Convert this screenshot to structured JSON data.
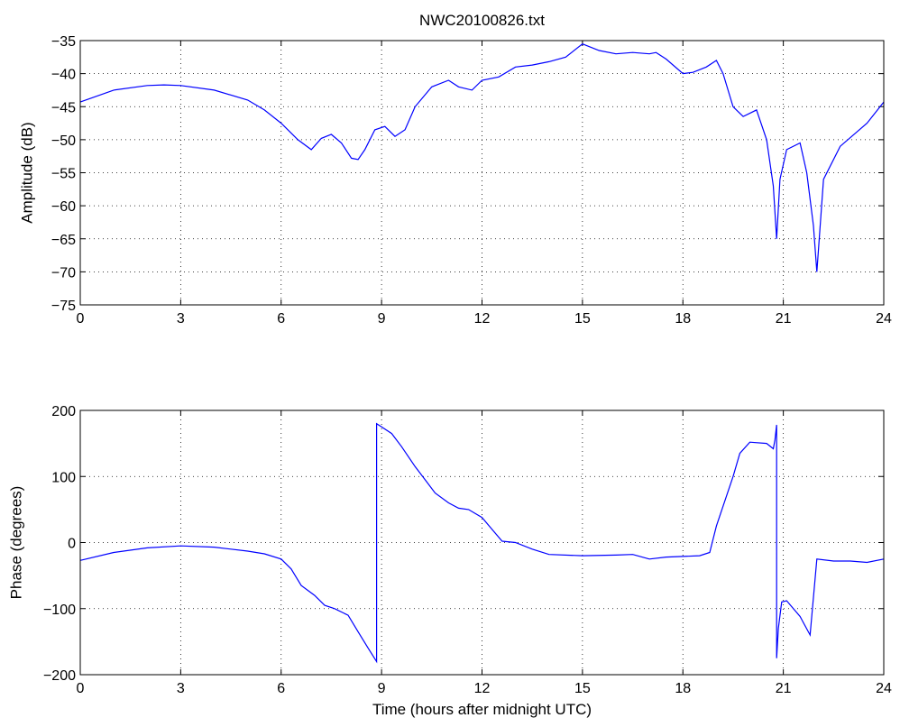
{
  "chart_data": [
    {
      "type": "line",
      "title": "NWC20100826.txt",
      "xlabel": "",
      "ylabel": "Amplitude (dB)",
      "xlim": [
        0,
        24
      ],
      "ylim": [
        -75,
        -35
      ],
      "xticks": [
        0,
        3,
        6,
        9,
        12,
        15,
        18,
        21,
        24
      ],
      "yticks": [
        -75,
        -70,
        -65,
        -60,
        -55,
        -50,
        -45,
        -40,
        -35
      ],
      "xtick_labels": [
        "0",
        "3",
        "6",
        "9",
        "12",
        "15",
        "18",
        "21",
        "24"
      ],
      "ytick_labels": [
        "−75",
        "−70",
        "−65",
        "−60",
        "−55",
        "−50",
        "−45",
        "−40",
        "−35"
      ],
      "grid": true,
      "line_color": "#0000ff",
      "series": [
        {
          "x": [
            0,
            1,
            2,
            2.5,
            3,
            4,
            5,
            5.5,
            6,
            6.5,
            6.9,
            7.2,
            7.5,
            7.8,
            8.1,
            8.3,
            8.5,
            8.8,
            9.1,
            9.4,
            9.7,
            10,
            10.5,
            11,
            11.3,
            11.7,
            12,
            12.5,
            13,
            13.5,
            14,
            14.5,
            15,
            15.5,
            16,
            16.5,
            17,
            17.2,
            17.5,
            18,
            18.3,
            18.7,
            19,
            19.2,
            19.5,
            19.8,
            20.2,
            20.5,
            20.7,
            20.8,
            20.9,
            21.1,
            21.5,
            21.7,
            21.9,
            22,
            22.2,
            22.7,
            23.5,
            24
          ],
          "y": [
            -44.3,
            -42.5,
            -41.8,
            -41.7,
            -41.8,
            -42.5,
            -44,
            -45.5,
            -47.5,
            -50,
            -51.5,
            -49.8,
            -49.2,
            -50.5,
            -52.8,
            -53,
            -51.5,
            -48.5,
            -48,
            -49.5,
            -48.5,
            -45,
            -42,
            -41,
            -42,
            -42.5,
            -41,
            -40.5,
            -39,
            -38.7,
            -38.2,
            -37.5,
            -35.5,
            -36.5,
            -37,
            -36.8,
            -37,
            -36.8,
            -37.8,
            -40,
            -39.8,
            -39,
            -38,
            -40,
            -45,
            -46.5,
            -45.5,
            -50,
            -57,
            -65,
            -56,
            -51.5,
            -50.5,
            -55,
            -63,
            -70,
            -56,
            -51,
            -47.5,
            -44.3
          ]
        }
      ]
    },
    {
      "type": "line",
      "title": "",
      "xlabel": "Time (hours after midnight UTC)",
      "ylabel": "Phase (degrees)",
      "xlim": [
        0,
        24
      ],
      "ylim": [
        -200,
        200
      ],
      "xticks": [
        0,
        3,
        6,
        9,
        12,
        15,
        18,
        21,
        24
      ],
      "yticks": [
        -200,
        -100,
        0,
        100,
        200
      ],
      "xtick_labels": [
        "0",
        "3",
        "6",
        "9",
        "12",
        "15",
        "18",
        "21",
        "24"
      ],
      "ytick_labels": [
        "−200",
        "−100",
        "0",
        "100",
        "200"
      ],
      "grid": true,
      "line_color": "#0000ff",
      "series": [
        {
          "x": [
            0,
            1,
            2,
            3,
            4,
            5,
            5.5,
            6,
            6.3,
            6.6,
            7,
            7.3,
            7.6,
            8,
            8.3,
            8.6,
            8.85,
            8.85,
            9,
            9.3,
            9.6,
            10,
            10.3,
            10.6,
            11,
            11.3,
            11.6,
            12,
            12.3,
            12.6,
            13,
            13.5,
            14,
            15,
            16,
            16.5,
            17,
            17.5,
            18,
            18.5,
            18.8,
            19,
            19.2,
            19.5,
            19.7,
            20,
            20.5,
            20.7,
            20.75,
            20.8,
            20.8,
            20.85,
            20.95,
            21.1,
            21.5,
            21.8,
            22,
            22.5,
            23,
            23.5,
            24
          ],
          "y": [
            -27,
            -15,
            -8,
            -5,
            -7,
            -13,
            -17,
            -25,
            -40,
            -65,
            -80,
            -95,
            -100,
            -110,
            -135,
            -160,
            -180,
            180,
            175,
            165,
            145,
            115,
            95,
            75,
            60,
            52,
            50,
            38,
            20,
            2,
            0,
            -10,
            -18,
            -20,
            -19,
            -18,
            -25,
            -22,
            -21,
            -20,
            -15,
            25,
            55,
            100,
            135,
            152,
            150,
            142,
            155,
            178,
            -175,
            -130,
            -90,
            -88,
            -112,
            -140,
            -25,
            -28,
            -28,
            -30,
            -25
          ]
        }
      ]
    }
  ]
}
